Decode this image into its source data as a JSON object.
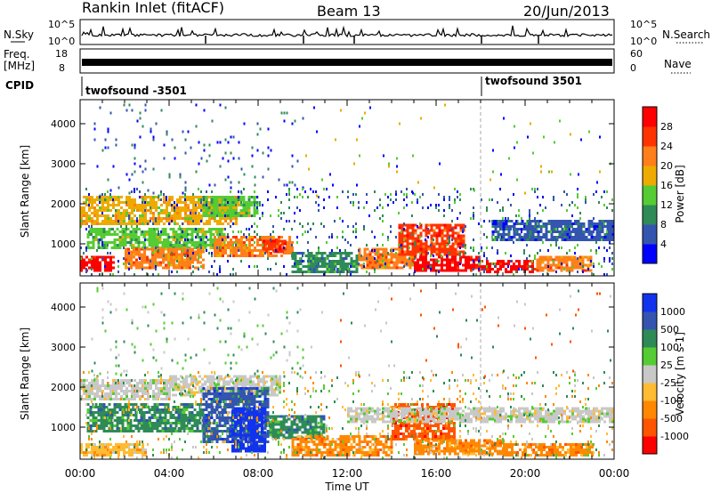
{
  "header": {
    "station": "Rankin Inlet (fitACF)",
    "beam": "Beam 13",
    "date": "20/Jun/2013"
  },
  "noise_panel": {
    "left_label": "N.Sky",
    "right_label": "N.Search",
    "left_ticks": [
      "10^5",
      "10^0"
    ],
    "right_ticks": [
      "10^5",
      "10^0"
    ]
  },
  "freq_panel": {
    "left_label_1": "Freq.",
    "left_label_2": "[MHz]",
    "left_ticks": [
      "18",
      "8"
    ],
    "right_label": "Nave",
    "right_ticks": [
      "60",
      "0"
    ]
  },
  "cpid": {
    "label": "CPID",
    "segments": [
      {
        "name": "twofsound -3501",
        "start_hour": 0
      },
      {
        "name": "twofsound 3501",
        "start_hour": 18.0
      }
    ]
  },
  "colors": {
    "power": [
      "#0000ff",
      "#3355b0",
      "#2e8b57",
      "#55cc33",
      "#eeaa00",
      "#ff7f1a",
      "#ff3300",
      "#ff0000"
    ],
    "velocity": [
      "#ff0000",
      "#ff5500",
      "#ff8800",
      "#ffbb33",
      "#c8c8c8",
      "#55cc33",
      "#2e8b57",
      "#3355b0",
      "#1133ee"
    ]
  },
  "chart_data": [
    {
      "type": "heatmap",
      "title": "",
      "xlabel": "",
      "ylabel": "Slant Range [km]",
      "xlim": [
        0,
        24
      ],
      "ylim": [
        200,
        4600
      ],
      "yticks": [
        1000,
        2000,
        3000,
        4000
      ],
      "colorbar_label": "Power [dB]",
      "colorbar_ticks": [
        "28",
        "24",
        "20",
        "16",
        "12",
        "8",
        "4"
      ],
      "bands": [
        {
          "x0": 0.0,
          "x1": 1.5,
          "y0": 300,
          "y1": 700,
          "level": 7
        },
        {
          "x0": 0.3,
          "x1": 6.5,
          "y0": 900,
          "y1": 1400,
          "level": 3
        },
        {
          "x0": 0.0,
          "x1": 7.0,
          "y0": 1500,
          "y1": 2200,
          "level": 4
        },
        {
          "x0": 2.0,
          "x1": 5.5,
          "y0": 400,
          "y1": 900,
          "level": 5
        },
        {
          "x0": 5.5,
          "x1": 8.0,
          "y0": 1700,
          "y1": 2200,
          "level": 3
        },
        {
          "x0": 6.0,
          "x1": 9.5,
          "y0": 700,
          "y1": 1200,
          "level": 5
        },
        {
          "x0": 8.2,
          "x1": 9.2,
          "y0": 800,
          "y1": 1100,
          "level": 6
        },
        {
          "x0": 9.5,
          "x1": 12.5,
          "y0": 300,
          "y1": 800,
          "level": 2
        },
        {
          "x0": 12.5,
          "x1": 15.0,
          "y0": 400,
          "y1": 900,
          "level": 5
        },
        {
          "x0": 14.3,
          "x1": 17.2,
          "y0": 700,
          "y1": 1500,
          "level": 6
        },
        {
          "x0": 15.0,
          "x1": 18.0,
          "y0": 300,
          "y1": 700,
          "level": 7
        },
        {
          "x0": 18.0,
          "x1": 20.5,
          "y0": 300,
          "y1": 600,
          "level": 7
        },
        {
          "x0": 20.5,
          "x1": 23.0,
          "y0": 300,
          "y1": 700,
          "level": 5
        },
        {
          "x0": 18.5,
          "x1": 24.0,
          "y0": 1100,
          "y1": 1600,
          "level": 1
        }
      ],
      "scatter": [
        {
          "x0": 0.5,
          "x1": 10.0,
          "y0": 2200,
          "y1": 4500,
          "density": 0.05,
          "levels": [
            0,
            1,
            2
          ]
        },
        {
          "x0": 0.0,
          "x1": 24.0,
          "y0": 200,
          "y1": 2400,
          "density": 0.12,
          "levels": [
            0,
            1,
            2,
            3
          ]
        },
        {
          "x0": 10.0,
          "x1": 24.0,
          "y0": 2200,
          "y1": 4500,
          "density": 0.02,
          "levels": [
            0,
            3,
            4
          ]
        }
      ]
    },
    {
      "type": "heatmap",
      "title": "",
      "xlabel": "Time UT",
      "ylabel": "Slant Range [km]",
      "xlim": [
        0,
        24
      ],
      "ylim": [
        200,
        4600
      ],
      "yticks": [
        1000,
        2000,
        3000,
        4000
      ],
      "xticks": [
        "00:00",
        "04:00",
        "08:00",
        "12:00",
        "16:00",
        "20:00",
        "00:00"
      ],
      "colorbar_label": "Velocity [m s-1]",
      "colorbar_ticks": [
        "1000",
        "500",
        "100",
        "25",
        "-25",
        "-100",
        "-500",
        "-1000"
      ],
      "bands": [
        {
          "x0": 0.0,
          "x1": 4.0,
          "y0": 1700,
          "y1": 2200,
          "level": 4
        },
        {
          "x0": 4.0,
          "x1": 9.0,
          "y0": 1800,
          "y1": 2300,
          "level": 4
        },
        {
          "x0": 0.3,
          "x1": 5.5,
          "y0": 900,
          "y1": 1600,
          "level": 6
        },
        {
          "x0": 5.5,
          "x1": 8.5,
          "y0": 600,
          "y1": 2000,
          "level": 7
        },
        {
          "x0": 6.8,
          "x1": 8.3,
          "y0": 400,
          "y1": 1500,
          "level": 8
        },
        {
          "x0": 8.5,
          "x1": 11.0,
          "y0": 700,
          "y1": 1300,
          "level": 6
        },
        {
          "x0": 9.5,
          "x1": 14.0,
          "y0": 300,
          "y1": 800,
          "level": 2
        },
        {
          "x0": 14.0,
          "x1": 16.8,
          "y0": 700,
          "y1": 1600,
          "level": 1
        },
        {
          "x0": 15.0,
          "x1": 19.0,
          "y0": 300,
          "y1": 700,
          "level": 2
        },
        {
          "x0": 19.0,
          "x1": 23.0,
          "y0": 300,
          "y1": 600,
          "level": 2
        },
        {
          "x0": 12.0,
          "x1": 24.0,
          "y0": 1100,
          "y1": 1500,
          "level": 4
        },
        {
          "x0": 0.0,
          "x1": 3.0,
          "y0": 300,
          "y1": 600,
          "level": 3
        }
      ],
      "scatter": [
        {
          "x0": 0.5,
          "x1": 10.0,
          "y0": 2200,
          "y1": 4500,
          "density": 0.05,
          "levels": [
            4,
            5,
            6
          ]
        },
        {
          "x0": 0.0,
          "x1": 24.0,
          "y0": 200,
          "y1": 2400,
          "density": 0.12,
          "levels": [
            2,
            3,
            4,
            5,
            6
          ]
        },
        {
          "x0": 10.0,
          "x1": 24.0,
          "y0": 2200,
          "y1": 4500,
          "density": 0.02,
          "levels": [
            1,
            4,
            6
          ]
        }
      ]
    }
  ]
}
